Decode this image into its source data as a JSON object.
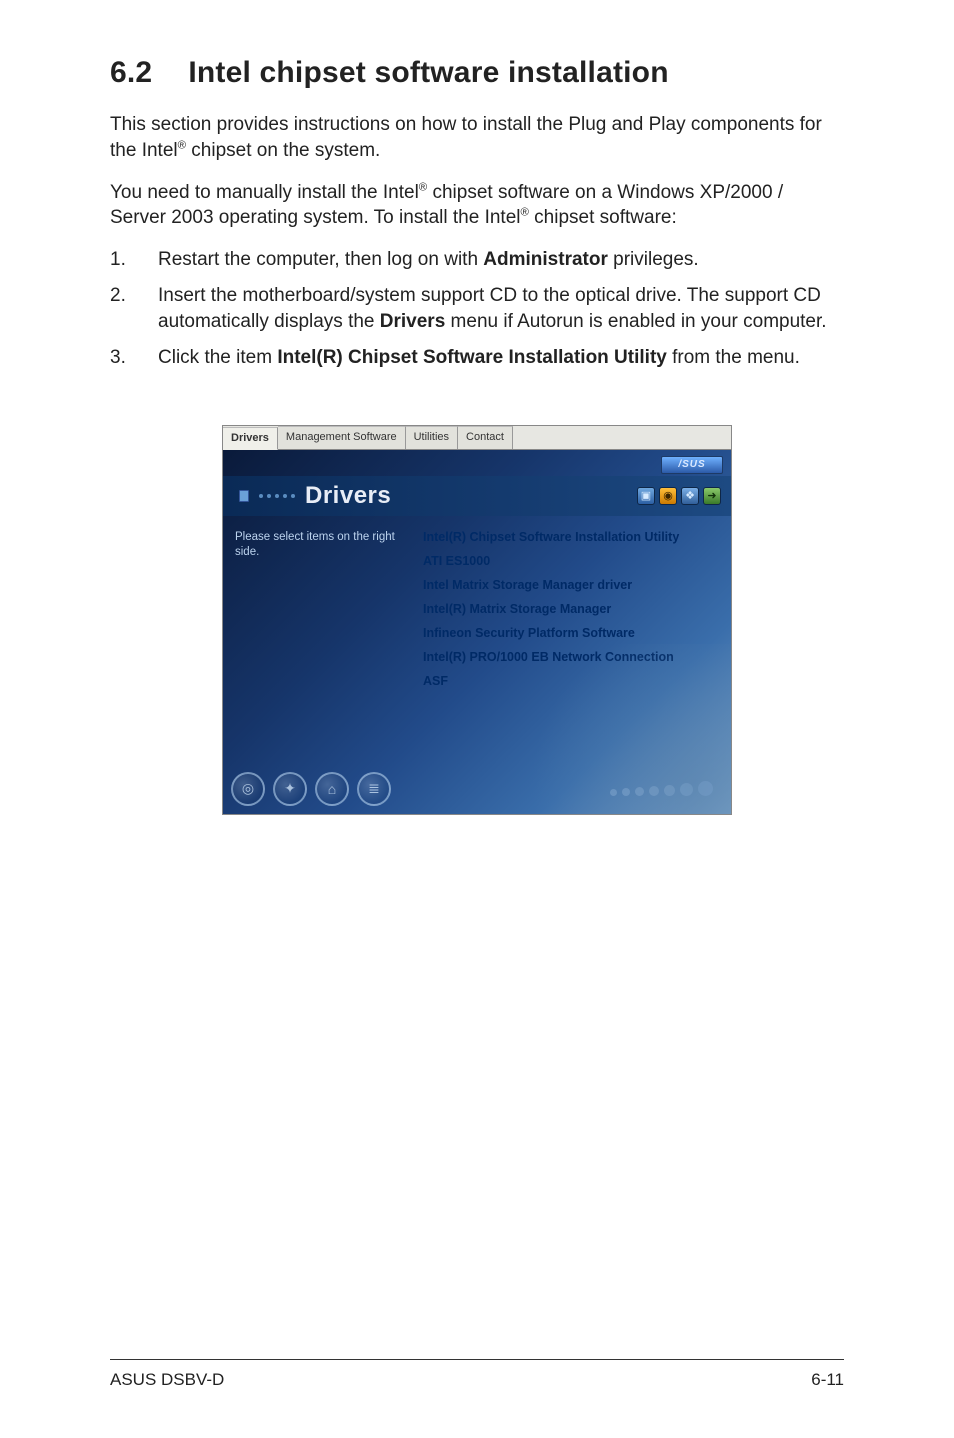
{
  "heading": {
    "number": "6.2",
    "title": "Intel chipset software installation"
  },
  "para1a": "This section provides instructions on how to install the Plug and Play components for the Intel",
  "para1b": " chipset on the system.",
  "para2a": "You need to manually install the Intel",
  "para2b": " chipset software on a Windows XP/2000 / Server 2003 operating system. To install the Intel",
  "para2c": " chipset software:",
  "steps": [
    {
      "num": "1.",
      "pre": "Restart the computer, then log on with ",
      "bold": "Administrator",
      "post": " privileges."
    },
    {
      "num": "2.",
      "pre": "Insert the motherboard/system support CD to the optical drive. The support CD automatically displays the ",
      "bold": "Drivers",
      "post": " menu if Autorun is enabled in your computer."
    },
    {
      "num": "3.",
      "pre": "Click the item ",
      "bold": "Intel(R) Chipset Software Installation Utility",
      "post": " from the menu."
    }
  ],
  "tabs": [
    "Drivers",
    "Management Software",
    "Utilities",
    "Contact"
  ],
  "badge": "/SUS",
  "band_title": "Drivers",
  "left_hint": "Please select items on the right side.",
  "driver_links": [
    "Intel(R) Chipset Software Installation Utility",
    "ATI ES1000",
    "Intel Matrix Storage Manager driver",
    "Intel(R) Matrix Storage Manager",
    "Infineon Security Platform Software",
    "Intel(R) PRO/1000 EB Network Connection",
    "ASF"
  ],
  "reg": "®",
  "footer": {
    "left": "ASUS DSBV-D",
    "right": "6-11"
  }
}
